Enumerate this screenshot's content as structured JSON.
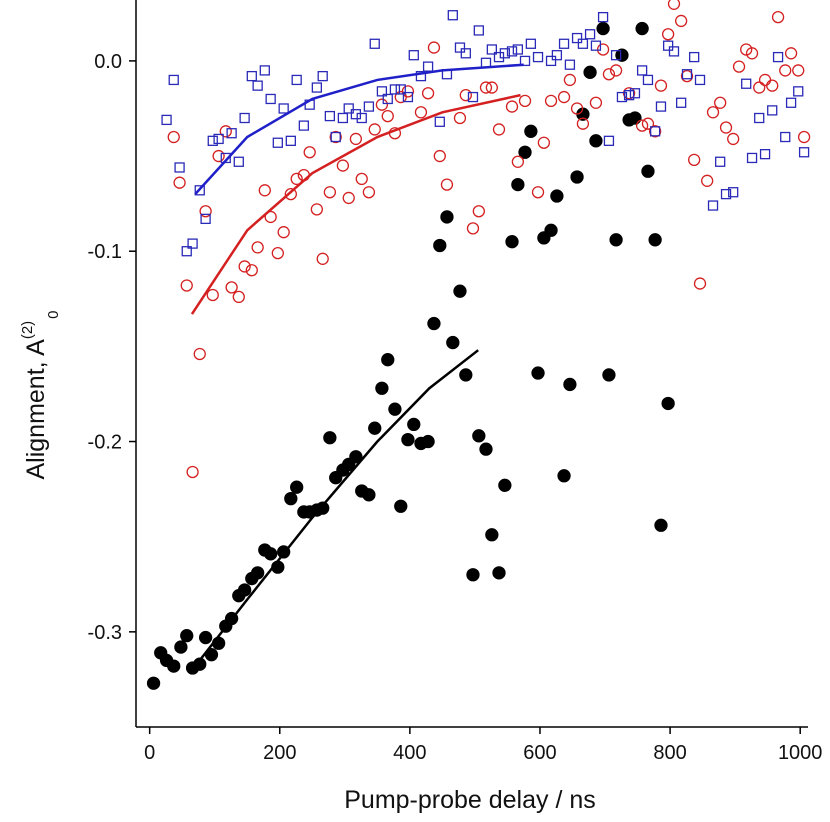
{
  "chart_data": {
    "type": "scatter",
    "x_label": "Pump-probe delay / ns",
    "y_label": "Alignment, A",
    "y_label_sup": "(2)",
    "y_label_sub": "0",
    "xlim": [
      -21,
      1012
    ],
    "ylim": [
      -0.35,
      0.032
    ],
    "xticks": [
      0,
      200,
      400,
      600,
      800,
      1000
    ],
    "yticks": [
      {
        "value": 0,
        "label": "0.0"
      },
      -0.1,
      -0.2,
      -0.3
    ],
    "grid": false,
    "series": [
      {
        "mode": "markers",
        "marker": "circle",
        "filled": true,
        "color": "#000000",
        "x": [
          6,
          17,
          26,
          37,
          48,
          57,
          66,
          77,
          86,
          95,
          106,
          117,
          126,
          137,
          146,
          157,
          166,
          177,
          186,
          197,
          206,
          217,
          226,
          237,
          246,
          257,
          266,
          277,
          286,
          297,
          306,
          317,
          326,
          337,
          346,
          357,
          366,
          377,
          386,
          397,
          406,
          417,
          428,
          437,
          446,
          457,
          466,
          477,
          486,
          497,
          506,
          517,
          526,
          537,
          546,
          557,
          566,
          577,
          586,
          597,
          606,
          617,
          626,
          637,
          646,
          657,
          666,
          677,
          686,
          697,
          706,
          717,
          726,
          737,
          746,
          757,
          766,
          777,
          786,
          797
        ],
        "values": [
          -0.327,
          -0.311,
          -0.315,
          -0.318,
          -0.308,
          -0.302,
          -0.319,
          -0.317,
          -0.303,
          -0.312,
          -0.306,
          -0.297,
          -0.293,
          -0.281,
          -0.278,
          -0.272,
          -0.269,
          -0.257,
          -0.259,
          -0.266,
          -0.258,
          -0.23,
          -0.224,
          -0.237,
          -0.237,
          -0.236,
          -0.235,
          -0.198,
          -0.219,
          -0.215,
          -0.212,
          -0.208,
          -0.226,
          -0.228,
          -0.193,
          -0.172,
          -0.157,
          -0.183,
          -0.234,
          -0.199,
          -0.191,
          -0.201,
          -0.2,
          -0.138,
          -0.097,
          -0.082,
          -0.148,
          -0.121,
          -0.165,
          -0.27,
          -0.197,
          -0.204,
          -0.249,
          -0.269,
          -0.223,
          -0.095,
          -0.065,
          -0.048,
          -0.037,
          -0.164,
          -0.093,
          -0.089,
          -0.071,
          -0.218,
          -0.17,
          -0.061,
          -0.028,
          -0.006,
          -0.042,
          0.017,
          -0.165,
          -0.094,
          0.003,
          -0.031,
          -0.03,
          0.017,
          -0.058,
          -0.094,
          -0.244,
          -0.18
        ]
      },
      {
        "mode": "markers",
        "marker": "circle",
        "filled": false,
        "color": "#d42020",
        "x": [
          37,
          46,
          57,
          66,
          77,
          86,
          97,
          106,
          117,
          126,
          137,
          146,
          157,
          166,
          177,
          186,
          197,
          206,
          217,
          226,
          237,
          246,
          257,
          266,
          277,
          286,
          297,
          306,
          317,
          326,
          337,
          346,
          357,
          366,
          377,
          386,
          397,
          417,
          428,
          437,
          446,
          457,
          477,
          486,
          497,
          506,
          517,
          526,
          537,
          557,
          566,
          577,
          597,
          606,
          617,
          637,
          646,
          657,
          666,
          686,
          697,
          706,
          717,
          737,
          757,
          766,
          777,
          786,
          797,
          806,
          817,
          826,
          837,
          846,
          857,
          866,
          877,
          886,
          897,
          906,
          917,
          926,
          937,
          946,
          957,
          966,
          977,
          986,
          997,
          1006
        ],
        "values": [
          -0.04,
          -0.064,
          -0.118,
          -0.216,
          -0.154,
          -0.079,
          -0.123,
          -0.05,
          -0.037,
          -0.119,
          -0.124,
          -0.108,
          -0.11,
          -0.098,
          -0.068,
          -0.082,
          -0.101,
          -0.09,
          -0.07,
          -0.062,
          -0.06,
          -0.048,
          -0.078,
          -0.104,
          -0.069,
          -0.04,
          -0.055,
          -0.072,
          -0.041,
          -0.062,
          -0.069,
          -0.036,
          -0.023,
          -0.029,
          -0.038,
          -0.019,
          -0.016,
          -0.027,
          -0.017,
          0.007,
          -0.05,
          -0.065,
          -0.03,
          -0.018,
          -0.088,
          -0.079,
          -0.014,
          -0.014,
          -0.036,
          -0.024,
          -0.053,
          -0.021,
          -0.069,
          -0.043,
          -0.021,
          -0.019,
          -0.01,
          -0.025,
          -0.033,
          -0.022,
          0.006,
          -0.007,
          -0.005,
          -0.017,
          -0.034,
          -0.033,
          -0.037,
          -0.013,
          0.014,
          0.03,
          0.021,
          -0.008,
          -0.052,
          -0.117,
          -0.063,
          -0.027,
          -0.022,
          -0.035,
          -0.041,
          -0.003,
          0.006,
          0.004,
          -0.014,
          -0.01,
          -0.013,
          0.023,
          -0.005,
          0.004,
          -0.005,
          -0.04
        ]
      },
      {
        "mode": "markers",
        "marker": "square",
        "filled": false,
        "color": "#2a2ab8",
        "x": [
          26,
          37,
          46,
          57,
          66,
          77,
          86,
          97,
          106,
          117,
          126,
          137,
          146,
          157,
          166,
          177,
          186,
          197,
          206,
          217,
          226,
          237,
          246,
          257,
          266,
          277,
          286,
          297,
          306,
          317,
          326,
          337,
          346,
          357,
          366,
          377,
          386,
          397,
          406,
          417,
          428,
          446,
          457,
          466,
          477,
          486,
          497,
          506,
          517,
          526,
          537,
          546,
          557,
          566,
          577,
          586,
          597,
          617,
          626,
          637,
          646,
          657,
          666,
          677,
          686,
          697,
          706,
          717,
          726,
          737,
          746,
          757,
          766,
          777,
          786,
          797,
          806,
          817,
          826,
          837,
          846,
          866,
          877,
          886,
          897,
          917,
          926,
          937,
          946,
          957,
          966,
          977,
          986,
          997,
          1006
        ],
        "values": [
          -0.031,
          -0.01,
          -0.056,
          -0.1,
          -0.096,
          -0.068,
          -0.083,
          -0.042,
          -0.041,
          -0.051,
          -0.038,
          -0.053,
          -0.03,
          -0.008,
          -0.013,
          -0.005,
          -0.02,
          -0.043,
          -0.025,
          -0.042,
          -0.01,
          -0.034,
          -0.023,
          -0.014,
          -0.008,
          -0.029,
          -0.04,
          -0.03,
          -0.025,
          -0.028,
          -0.03,
          -0.024,
          0.009,
          -0.016,
          -0.02,
          -0.015,
          -0.015,
          -0.019,
          0.003,
          -0.008,
          -0.003,
          -0.032,
          -0.007,
          0.024,
          0.007,
          0.004,
          -0.019,
          0.016,
          -0.001,
          0.006,
          0.002,
          0.004,
          0.005,
          0.006,
          0,
          0.009,
          0.002,
          0,
          0.003,
          0.009,
          -0.002,
          0.012,
          0.009,
          0.014,
          0.008,
          0.023,
          -0.042,
          0.003,
          -0.019,
          -0.018,
          -0.017,
          -0.005,
          -0.01,
          -0.037,
          -0.024,
          0.008,
          0.005,
          -0.022,
          -0.007,
          0.002,
          -0.01,
          -0.076,
          -0.053,
          -0.07,
          -0.069,
          -0.012,
          -0.051,
          -0.03,
          -0.049,
          -0.026,
          0.002,
          -0.04,
          -0.022,
          -0.016,
          -0.048
        ]
      },
      {
        "mode": "line",
        "color": "#000000",
        "x": [
          70,
          150,
          250,
          350,
          430,
          505
        ],
        "values": [
          -0.318,
          -0.283,
          -0.24,
          -0.2,
          -0.172,
          -0.152
        ]
      },
      {
        "mode": "line",
        "color": "#d42020",
        "x": [
          65,
          150,
          250,
          350,
          450,
          570
        ],
        "values": [
          -0.133,
          -0.089,
          -0.059,
          -0.04,
          -0.027,
          -0.018
        ]
      },
      {
        "mode": "line",
        "color": "#2020c8",
        "x": [
          70,
          150,
          250,
          350,
          450,
          575
        ],
        "values": [
          -0.07,
          -0.04,
          -0.02,
          -0.01,
          -0.005,
          -0.002
        ]
      }
    ]
  }
}
